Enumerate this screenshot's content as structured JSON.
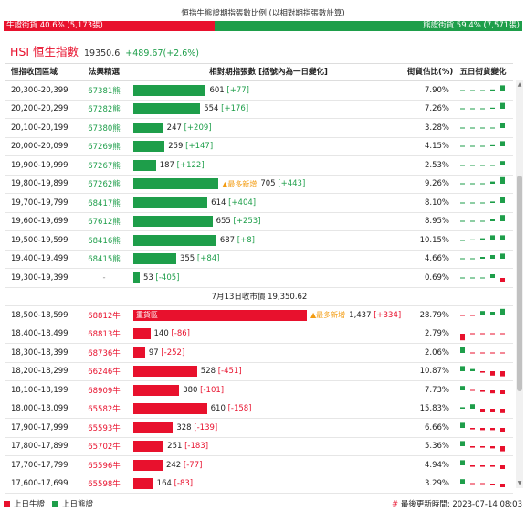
{
  "ratio": {
    "title": "恒指牛熊證期指張數比例 (以相對期指張數計算)",
    "bull_label": "牛證街貨 40.6% (5,173張)",
    "bear_label": "熊證街貨 59.4% (7,571張)",
    "bull_pct": 40.6,
    "bear_pct": 59.4
  },
  "hsi": {
    "name": "HSI 恒生指數",
    "value": "19350.6",
    "change": "+489.67(+2.6%)"
  },
  "table": {
    "headers": {
      "range": "恒指收回區域",
      "code": "法興精選",
      "relative": "相對期指張數 [括號內為一日變化]",
      "share": "街貨佔比(%)",
      "five_day": "五日街貨變化"
    },
    "max_count": 1437,
    "bear_rows": [
      {
        "range": "20,300-20,399",
        "code": "67381熊",
        "count": 601,
        "count_text": "601",
        "change": "[+77]",
        "share": "7.90%",
        "spark": [
          0.1,
          0.1,
          0.1,
          0.15,
          0.7
        ]
      },
      {
        "range": "20,200-20,299",
        "code": "67282熊",
        "count": 554,
        "count_text": "554",
        "change": "[+176]",
        "share": "7.26%",
        "spark": [
          0.1,
          0.1,
          0.1,
          0.15,
          0.8
        ]
      },
      {
        "range": "20,100-20,199",
        "code": "67380熊",
        "count": 247,
        "count_text": "247",
        "change": "[+209]",
        "share": "3.28%",
        "spark": [
          0.1,
          0.1,
          0.1,
          0.1,
          0.75
        ]
      },
      {
        "range": "20,000-20,099",
        "code": "67269熊",
        "count": 259,
        "count_text": "259",
        "change": "[+147]",
        "share": "4.15%",
        "spark": [
          0.1,
          0.1,
          0.1,
          0.15,
          0.7
        ]
      },
      {
        "range": "19,900-19,999",
        "code": "67267熊",
        "count": 187,
        "count_text": "187",
        "change": "[+122]",
        "share": "2.53%",
        "spark": [
          0.1,
          0.1,
          0.1,
          0.1,
          0.6
        ]
      },
      {
        "range": "19,800-19,899",
        "code": "67262熊",
        "count": 705,
        "count_text": "705",
        "change": "[+443]",
        "share": "9.26%",
        "hot": "▲最多新增",
        "spark": [
          0.1,
          0.1,
          0.1,
          0.3,
          0.9
        ]
      },
      {
        "range": "19,700-19,799",
        "code": "68417熊",
        "count": 614,
        "count_text": "614",
        "change": "[+404]",
        "share": "8.10%",
        "spark": [
          0.1,
          0.1,
          0.1,
          0.2,
          0.85
        ]
      },
      {
        "range": "19,600-19,699",
        "code": "67612熊",
        "count": 655,
        "count_text": "655",
        "change": "[+253]",
        "share": "8.95%",
        "spark": [
          0.1,
          0.1,
          0.1,
          0.35,
          0.85
        ]
      },
      {
        "range": "19,500-19,599",
        "code": "68416熊",
        "count": 687,
        "count_text": "687",
        "change": "[+8]",
        "share": "10.15%",
        "spark": [
          0.1,
          0.15,
          0.3,
          0.7,
          0.7
        ]
      },
      {
        "range": "19,400-19,499",
        "code": "68415熊",
        "count": 355,
        "count_text": "355",
        "change": "[+84]",
        "share": "4.66%",
        "spark": [
          0.1,
          0.1,
          0.25,
          0.5,
          0.7
        ]
      },
      {
        "range": "19,300-19,399",
        "code": "-",
        "count": 53,
        "count_text": "53",
        "change": "[-405]",
        "share": "0.69%",
        "spark": [
          0.1,
          0.1,
          0.1,
          0.5,
          -0.5
        ]
      }
    ],
    "close_label": "7月13日收市價 19,350.62",
    "bull_rows": [
      {
        "range": "18,500-18,599",
        "code": "68812牛",
        "count": 1437,
        "count_text": "1,437",
        "change": "[+334]",
        "share": "28.79%",
        "hot": "▲最多新增",
        "bar_text": "重貨區",
        "spark": [
          0.1,
          0.1,
          0.6,
          0.5,
          0.9
        ]
      },
      {
        "range": "18,400-18,499",
        "code": "68813牛",
        "count": 140,
        "count_text": "140",
        "change": "[-86]",
        "share": "2.79%",
        "spark": [
          -0.9,
          -0.1,
          -0.1,
          -0.1,
          -0.1
        ]
      },
      {
        "range": "18,300-18,399",
        "code": "68736牛",
        "count": 97,
        "count_text": "97",
        "change": "[-252]",
        "share": "2.06%",
        "spark": [
          0.8,
          -0.1,
          -0.1,
          -0.1,
          -0.1
        ]
      },
      {
        "range": "18,200-18,299",
        "code": "66246牛",
        "count": 528,
        "count_text": "528",
        "change": "[-451]",
        "share": "10.87%",
        "spark": [
          0.7,
          0.3,
          -0.2,
          -0.6,
          -0.7
        ]
      },
      {
        "range": "18,100-18,199",
        "code": "68909牛",
        "count": 380,
        "count_text": "380",
        "change": "[-101]",
        "share": "7.73%",
        "spark": [
          0.6,
          0.1,
          -0.2,
          -0.4,
          -0.5
        ]
      },
      {
        "range": "18,000-18,099",
        "code": "65582牛",
        "count": 610,
        "count_text": "610",
        "change": "[-158]",
        "share": "15.83%",
        "spark": [
          0.2,
          0.6,
          -0.5,
          -0.5,
          -0.6
        ]
      },
      {
        "range": "17,900-17,999",
        "code": "65593牛",
        "count": 328,
        "count_text": "328",
        "change": "[-139]",
        "share": "6.66%",
        "spark": [
          0.7,
          -0.2,
          -0.3,
          -0.3,
          -0.6
        ]
      },
      {
        "range": "17,800-17,899",
        "code": "65702牛",
        "count": 251,
        "count_text": "251",
        "change": "[-183]",
        "share": "5.36%",
        "spark": [
          0.7,
          -0.2,
          -0.2,
          -0.3,
          -0.7
        ]
      },
      {
        "range": "17,700-17,799",
        "code": "65596牛",
        "count": 242,
        "count_text": "242",
        "change": "[-77]",
        "share": "4.94%",
        "spark": [
          0.7,
          -0.2,
          -0.2,
          -0.2,
          -0.5
        ]
      },
      {
        "range": "17,600-17,699",
        "code": "65598牛",
        "count": 164,
        "count_text": "164",
        "change": "[-83]",
        "share": "3.29%",
        "spark": [
          0.6,
          -0.1,
          -0.1,
          -0.2,
          -0.5
        ]
      }
    ]
  },
  "legend": {
    "bull": "上日牛證",
    "bear": "上日熊證"
  },
  "updated": {
    "hash": "#",
    "text": "最後更新時間: 2023-07-14 08:03"
  },
  "colors": {
    "bull": "#e8112d",
    "bear": "#1e9e4a",
    "hot": "#f39c12"
  }
}
